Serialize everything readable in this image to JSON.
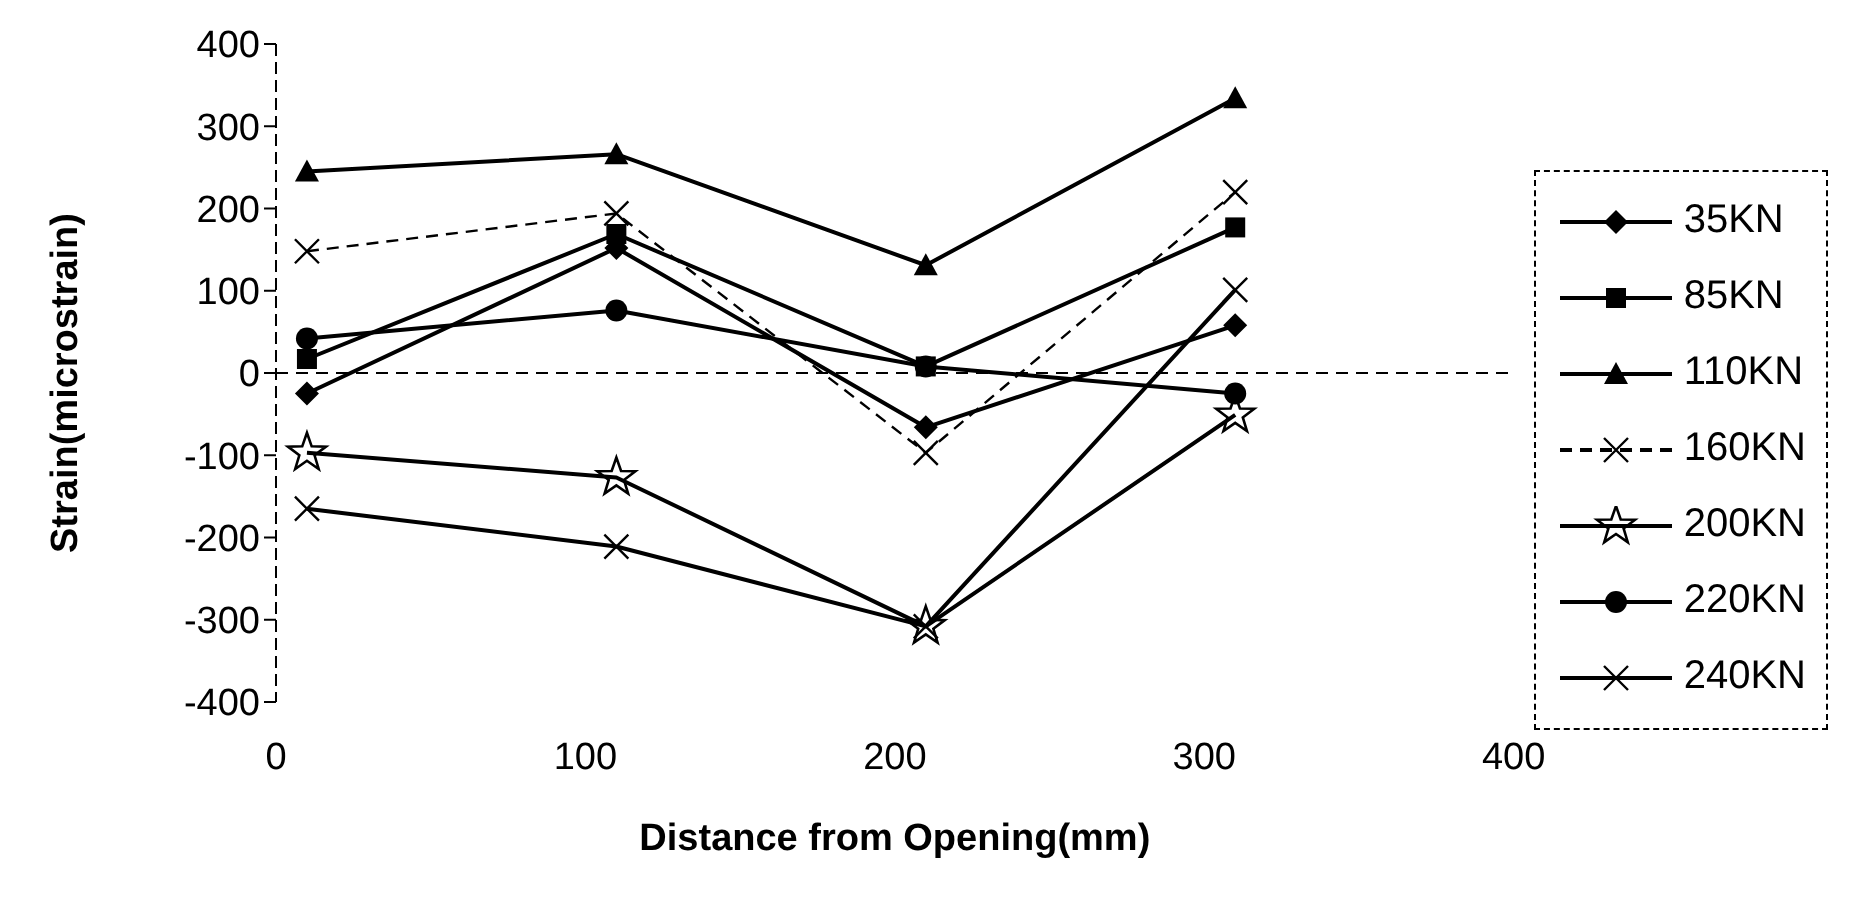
{
  "chart_data": {
    "type": "line",
    "xlabel": "Distance from Opening(mm)",
    "ylabel": "Strain(microstrain)",
    "x": [
      10,
      110,
      210,
      310
    ],
    "xlim": [
      0,
      400
    ],
    "xticks": [
      0,
      100,
      200,
      300,
      400
    ],
    "ylim": [
      -400,
      400
    ],
    "yticks": [
      -400,
      -300,
      -200,
      -100,
      0,
      100,
      200,
      300,
      400
    ],
    "grid": false,
    "legend": "right",
    "ref_lines": [
      {
        "axis": "y",
        "value": 0,
        "color": "#000000",
        "line_style": "dashed"
      }
    ],
    "series": [
      {
        "name": "35KN",
        "color": "#000000",
        "marker": "diamond",
        "values": [
          -25,
          152,
          -66,
          58
        ]
      },
      {
        "name": "85KN",
        "color": "#000000",
        "marker": "square",
        "values": [
          17,
          169,
          8,
          177
        ]
      },
      {
        "name": "110KN",
        "color": "#000000",
        "marker": "triangle",
        "values": [
          245,
          266,
          131,
          334
        ]
      },
      {
        "name": "160KN",
        "color": "#000000",
        "marker": "cross",
        "line_style": "dashed",
        "values": [
          148,
          194,
          -97,
          220
        ]
      },
      {
        "name": "200KN",
        "color": "#000000",
        "marker": "star",
        "values": [
          -97,
          -127,
          -308,
          -51
        ]
      },
      {
        "name": "220KN",
        "color": "#000000",
        "marker": "circle",
        "values": [
          42,
          76,
          8,
          -25
        ]
      },
      {
        "name": "240KN",
        "color": "#000000",
        "marker": "cross",
        "values": [
          -165,
          -211,
          -308,
          101
        ]
      }
    ]
  }
}
